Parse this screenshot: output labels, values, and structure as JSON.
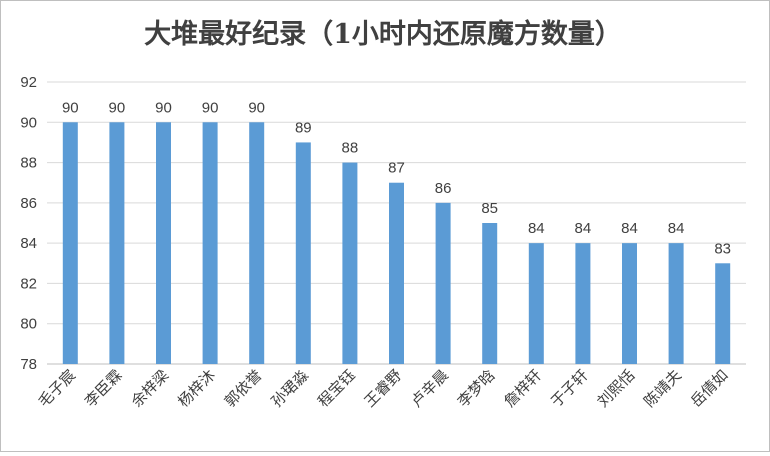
{
  "chart_data": {
    "type": "bar",
    "title": "大堆最好纪录（1小时内还原魔方数量）",
    "xlabel": "",
    "ylabel": "",
    "ylim": [
      78,
      92
    ],
    "yticks": [
      78,
      80,
      82,
      84,
      86,
      88,
      90,
      92
    ],
    "grid": true,
    "bar_color": "#5b9bd5",
    "categories": [
      "毛子宸",
      "李臣霖",
      "余梓梁",
      "杨梓沐",
      "郭依誉",
      "孙珺淼",
      "程宝钰",
      "王睿野",
      "卢辛晨",
      "李梦晗",
      "詹梓轩",
      "于子轩",
      "刘熙恬",
      "陈靖夫",
      "岳倩如"
    ],
    "values": [
      90,
      90,
      90,
      90,
      90,
      89,
      88,
      87,
      86,
      85,
      84,
      84,
      84,
      84,
      83
    ]
  }
}
